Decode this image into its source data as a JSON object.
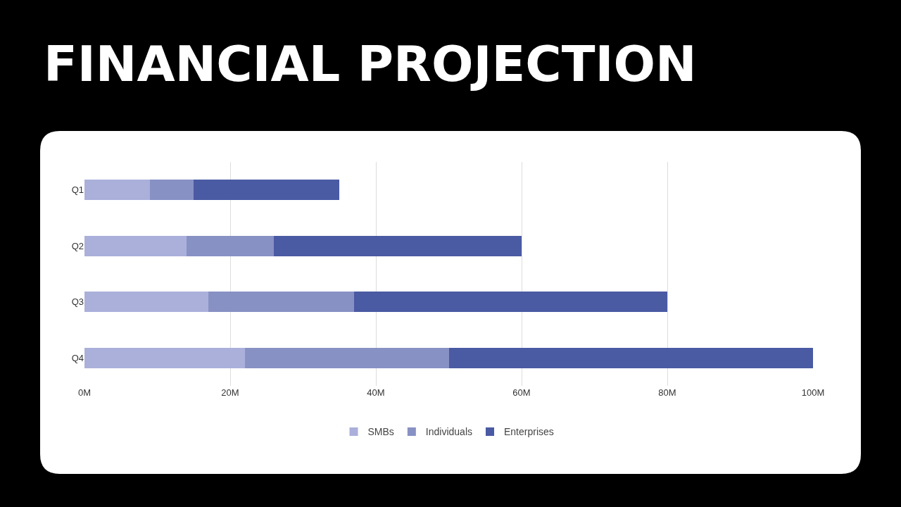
{
  "chart_data": {
    "type": "bar",
    "orientation": "horizontal",
    "stacked": true,
    "title": "FINANCIAL PROJECTION",
    "categories": [
      "Q1",
      "Q2",
      "Q3",
      "Q4"
    ],
    "series": [
      {
        "name": "SMBs",
        "color": "#aab0da",
        "values": [
          9,
          14,
          17,
          22
        ]
      },
      {
        "name": "Individuals",
        "color": "#8891c4",
        "values": [
          6,
          12,
          20,
          28
        ]
      },
      {
        "name": "Enterprises",
        "color": "#4a5aa3",
        "values": [
          20,
          34,
          43,
          50
        ]
      }
    ],
    "xlim": [
      0,
      100
    ],
    "xticks": [
      {
        "value": 0,
        "label": "0M"
      },
      {
        "value": 20,
        "label": "20M"
      },
      {
        "value": 40,
        "label": "40M"
      },
      {
        "value": 60,
        "label": "60M"
      },
      {
        "value": 80,
        "label": "80M"
      },
      {
        "value": 100,
        "label": "100M"
      }
    ],
    "grid": "x",
    "legend": "bottom"
  }
}
